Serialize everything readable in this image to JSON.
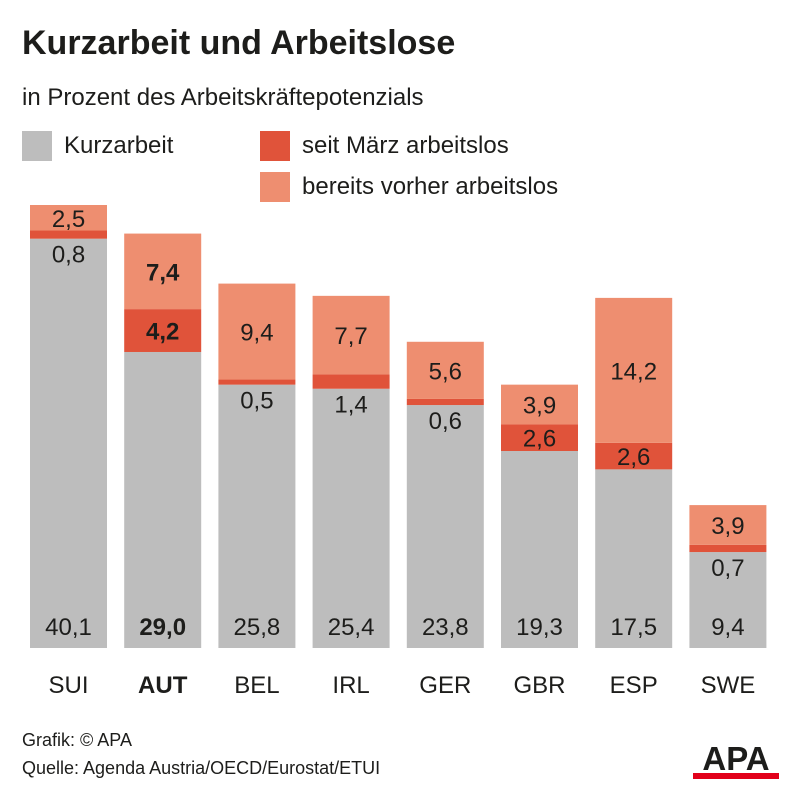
{
  "title": "Kurzarbeit und Arbeitslose",
  "subtitle": "in Prozent des Arbeitskräftepotenzials",
  "legend": [
    {
      "label": "Kurzarbeit",
      "color": "#bdbdbd"
    },
    {
      "label": "seit März arbeitslos",
      "color": "#e0533a"
    },
    {
      "label": "bereits vorher arbeitslos",
      "color": "#ee8e70"
    }
  ],
  "chart_data": {
    "type": "bar",
    "stacked": true,
    "categories": [
      "SUI",
      "AUT",
      "BEL",
      "IRL",
      "GER",
      "GBR",
      "ESP",
      "SWE"
    ],
    "category_labels": [
      "SUI",
      "AUT",
      "BEL",
      "IRL",
      "GER",
      "GBR",
      "ESP",
      "SWE"
    ],
    "highlight_category": "AUT",
    "series": [
      {
        "name": "Kurzarbeit",
        "color": "#bdbdbd",
        "values": [
          40.1,
          29.0,
          25.8,
          25.4,
          23.8,
          19.3,
          17.5,
          9.4
        ],
        "labels": [
          "40,1",
          "29,0",
          "25,8",
          "25,4",
          "23,8",
          "19,3",
          "17,5",
          "9,4"
        ]
      },
      {
        "name": "seit März arbeitslos",
        "color": "#e0533a",
        "values": [
          0.8,
          4.2,
          0.5,
          1.4,
          0.6,
          2.6,
          2.6,
          0.7
        ],
        "labels": [
          "0,8",
          "4,2",
          "0,5",
          "1,4",
          "0,6",
          "2,6",
          "2,6",
          "0,7"
        ]
      },
      {
        "name": "bereits vorher arbeitslos",
        "color": "#ee8e70",
        "values": [
          2.5,
          7.4,
          9.4,
          7.7,
          5.6,
          3.9,
          14.2,
          3.9
        ],
        "labels": [
          "2,5",
          "7,4",
          "9,4",
          "7,7",
          "5,6",
          "3,9",
          "14,2",
          "3,9"
        ]
      }
    ],
    "ylim": [
      0,
      43.4
    ],
    "grid": false,
    "legend_position": "top-left"
  },
  "footer": {
    "credit": "Grafik: © APA",
    "source": "Quelle: Agenda Austria/OECD/Eurostat/ETUI"
  },
  "logo": {
    "text": "APA",
    "bar_color": "#e2001a"
  }
}
